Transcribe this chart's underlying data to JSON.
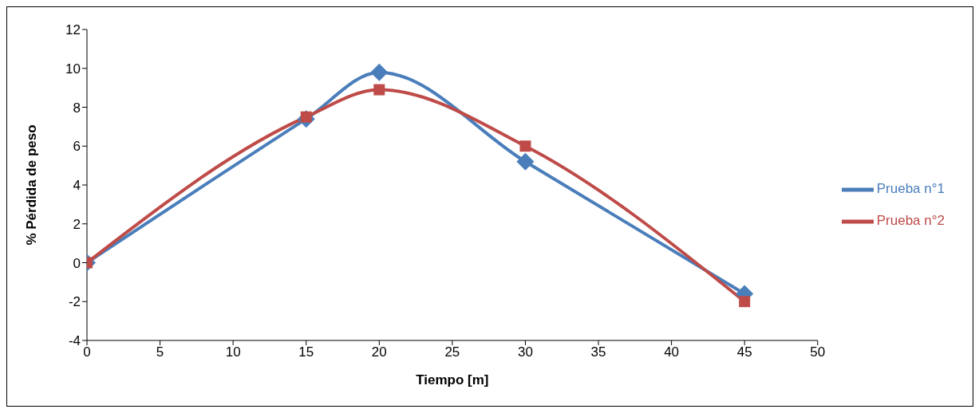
{
  "chart_data": {
    "type": "line",
    "xlabel": "Tiempo [m]",
    "ylabel": "% Pérdida de peso",
    "x": [
      0,
      15,
      20,
      30,
      45
    ],
    "series": [
      {
        "name": "Prueba n°1",
        "color": "#4a7ebb",
        "marker": "diamond",
        "values": [
          0,
          7.4,
          9.8,
          5.2,
          -1.6
        ]
      },
      {
        "name": "Prueba n°2",
        "color": "#be4b48",
        "marker": "square",
        "values": [
          0,
          7.5,
          8.9,
          6,
          -2
        ]
      }
    ],
    "xlim": [
      0,
      50
    ],
    "xticks": [
      0,
      5,
      10,
      15,
      20,
      25,
      30,
      35,
      40,
      45,
      50
    ],
    "ylim": [
      -4,
      12
    ],
    "yticks": [
      -4,
      -2,
      0,
      2,
      4,
      6,
      8,
      10,
      12
    ],
    "grid": false,
    "legend": "right",
    "line_style": "solid"
  }
}
